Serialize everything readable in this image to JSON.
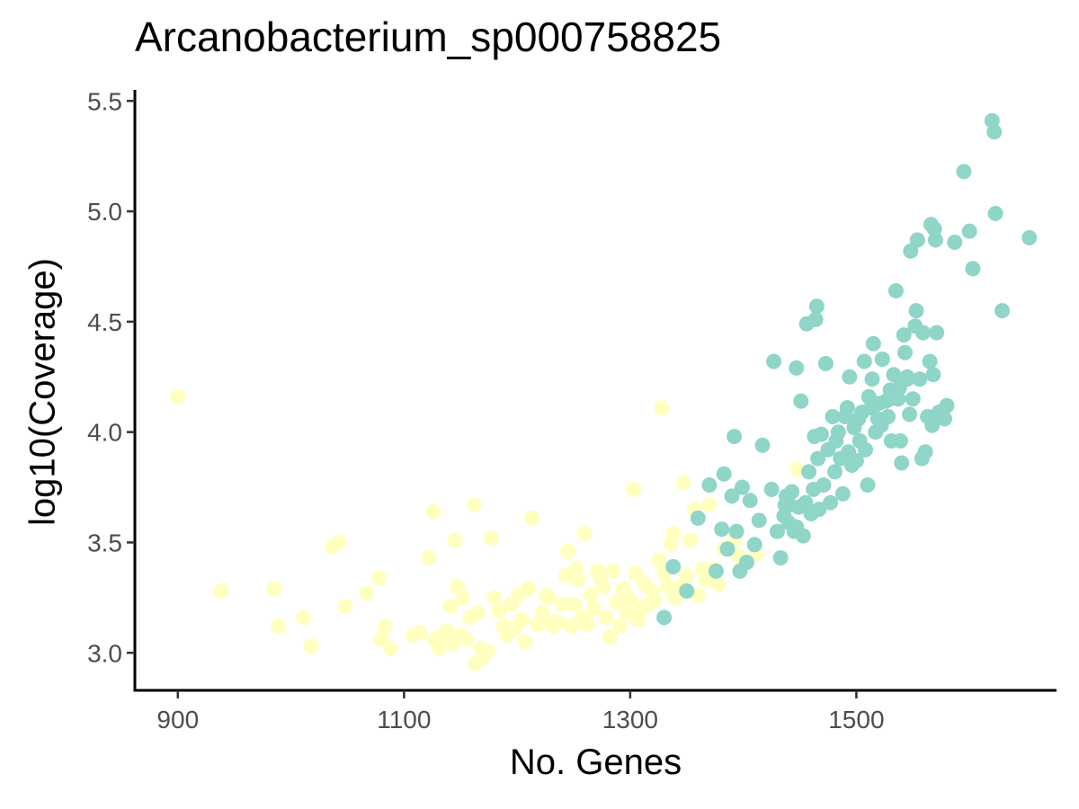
{
  "chart_data": {
    "type": "scatter",
    "title": "Arcanobacterium_sp000758825",
    "xlabel": "No. Genes",
    "ylabel": "log10(Coverage)",
    "xlim": [
      862,
      1677
    ],
    "ylim": [
      2.83,
      5.55
    ],
    "x_ticks": [
      900,
      1100,
      1300,
      1500
    ],
    "y_ticks": [
      3.0,
      3.5,
      4.0,
      4.5,
      5.0,
      5.5
    ],
    "x_tick_labels": [
      "900",
      "1100",
      "1300",
      "1500"
    ],
    "y_tick_labels": [
      "3.0",
      "3.5",
      "4.0",
      "4.5",
      "5.0",
      "5.5"
    ],
    "grid": false,
    "legend": "none",
    "colors": {
      "cluster_a": "#ffffbf",
      "cluster_b": "#8fd5c8"
    },
    "series": [
      {
        "color": "#ffffbf",
        "points": [
          [
            900,
            4.16
          ],
          [
            938,
            3.28
          ],
          [
            985,
            3.29
          ],
          [
            989,
            3.12
          ],
          [
            1011,
            3.16
          ],
          [
            1018,
            3.03
          ],
          [
            1037,
            3.48
          ],
          [
            1042,
            3.5
          ],
          [
            1048,
            3.21
          ],
          [
            1067,
            3.27
          ],
          [
            1078,
            3.34
          ],
          [
            1080,
            3.06
          ],
          [
            1083,
            3.12
          ],
          [
            1088,
            3.02
          ],
          [
            1108,
            3.08
          ],
          [
            1114,
            3.09
          ],
          [
            1122,
            3.43
          ],
          [
            1126,
            3.64
          ],
          [
            1128,
            3.06
          ],
          [
            1131,
            3.02
          ],
          [
            1134,
            3.08
          ],
          [
            1138,
            3.1
          ],
          [
            1141,
            3.21
          ],
          [
            1143,
            3.04
          ],
          [
            1145,
            3.51
          ],
          [
            1147,
            3.3
          ],
          [
            1150,
            3.08
          ],
          [
            1152,
            3.25
          ],
          [
            1155,
            3.06
          ],
          [
            1158,
            3.16
          ],
          [
            1162,
            3.67
          ],
          [
            1163,
            2.95
          ],
          [
            1165,
            3.18
          ],
          [
            1168,
            3.02
          ],
          [
            1170,
            2.98
          ],
          [
            1174,
            3.01
          ],
          [
            1177,
            3.52
          ],
          [
            1180,
            3.25
          ],
          [
            1184,
            3.19
          ],
          [
            1188,
            3.12
          ],
          [
            1191,
            3.08
          ],
          [
            1195,
            3.22
          ],
          [
            1198,
            3.11
          ],
          [
            1201,
            3.26
          ],
          [
            1204,
            3.15
          ],
          [
            1207,
            3.05
          ],
          [
            1210,
            3.29
          ],
          [
            1213,
            3.61
          ],
          [
            1218,
            3.13
          ],
          [
            1222,
            3.18
          ],
          [
            1226,
            3.26
          ],
          [
            1229,
            3.14
          ],
          [
            1232,
            3.12
          ],
          [
            1236,
            3.14
          ],
          [
            1240,
            3.22
          ],
          [
            1243,
            3.35
          ],
          [
            1245,
            3.46
          ],
          [
            1248,
            3.12
          ],
          [
            1250,
            3.22
          ],
          [
            1252,
            3.38
          ],
          [
            1254,
            3.33
          ],
          [
            1257,
            3.16
          ],
          [
            1260,
            3.54
          ],
          [
            1262,
            3.13
          ],
          [
            1265,
            3.26
          ],
          [
            1268,
            3.2
          ],
          [
            1271,
            3.37
          ],
          [
            1273,
            3.34
          ],
          [
            1276,
            3.3
          ],
          [
            1279,
            3.16
          ],
          [
            1282,
            3.07
          ],
          [
            1285,
            3.37
          ],
          [
            1288,
            3.23
          ],
          [
            1291,
            3.12
          ],
          [
            1294,
            3.29
          ],
          [
            1297,
            3.18
          ],
          [
            1300,
            3.24
          ],
          [
            1303,
            3.74
          ],
          [
            1305,
            3.36
          ],
          [
            1307,
            3.15
          ],
          [
            1310,
            3.2
          ],
          [
            1313,
            3.31
          ],
          [
            1316,
            3.22
          ],
          [
            1319,
            3.28
          ],
          [
            1322,
            3.24
          ],
          [
            1325,
            3.42
          ],
          [
            1328,
            4.11
          ],
          [
            1330,
            3.36
          ],
          [
            1333,
            3.3
          ],
          [
            1336,
            3.49
          ],
          [
            1338,
            3.54
          ],
          [
            1341,
            3.27
          ],
          [
            1344,
            3.3
          ],
          [
            1347,
            3.77
          ],
          [
            1350,
            3.35
          ],
          [
            1353,
            3.51
          ],
          [
            1357,
            3.65
          ],
          [
            1360,
            3.26
          ],
          [
            1364,
            3.38
          ],
          [
            1367,
            3.33
          ],
          [
            1370,
            3.67
          ],
          [
            1374,
            3.38
          ],
          [
            1378,
            3.31
          ],
          [
            1383,
            3.47
          ],
          [
            1392,
            3.51
          ],
          [
            1396,
            3.44
          ],
          [
            1412,
            3.45
          ],
          [
            1448,
            3.83
          ],
          [
            1340,
            3.25
          ],
          [
            1228,
            3.25
          ]
        ]
      },
      {
        "color": "#8fd5c8",
        "points": [
          [
            1330,
            3.16
          ],
          [
            1338,
            3.39
          ],
          [
            1350,
            3.28
          ],
          [
            1360,
            3.61
          ],
          [
            1370,
            3.76
          ],
          [
            1376,
            3.37
          ],
          [
            1381,
            3.56
          ],
          [
            1383,
            3.81
          ],
          [
            1386,
            3.47
          ],
          [
            1390,
            3.71
          ],
          [
            1392,
            3.98
          ],
          [
            1394,
            3.55
          ],
          [
            1397,
            3.37
          ],
          [
            1399,
            3.75
          ],
          [
            1403,
            3.41
          ],
          [
            1406,
            3.69
          ],
          [
            1410,
            3.49
          ],
          [
            1414,
            3.6
          ],
          [
            1417,
            3.94
          ],
          [
            1425,
            3.74
          ],
          [
            1427,
            4.32
          ],
          [
            1430,
            3.55
          ],
          [
            1433,
            3.43
          ],
          [
            1436,
            3.62
          ],
          [
            1438,
            3.71
          ],
          [
            1440,
            3.59
          ],
          [
            1443,
            3.73
          ],
          [
            1445,
            3.55
          ],
          [
            1447,
            4.29
          ],
          [
            1449,
            3.66
          ],
          [
            1451,
            4.14
          ],
          [
            1453,
            3.53
          ],
          [
            1455,
            3.68
          ],
          [
            1456,
            4.49
          ],
          [
            1458,
            3.82
          ],
          [
            1460,
            3.63
          ],
          [
            1462,
            3.74
          ],
          [
            1463,
            3.98
          ],
          [
            1464,
            4.51
          ],
          [
            1465,
            4.57
          ],
          [
            1466,
            3.88
          ],
          [
            1467,
            3.65
          ],
          [
            1469,
            3.99
          ],
          [
            1471,
            3.76
          ],
          [
            1473,
            4.31
          ],
          [
            1475,
            3.92
          ],
          [
            1477,
            3.68
          ],
          [
            1479,
            4.07
          ],
          [
            1481,
            3.82
          ],
          [
            1482,
            3.96
          ],
          [
            1484,
            4.0
          ],
          [
            1486,
            3.88
          ],
          [
            1488,
            3.72
          ],
          [
            1490,
            4.07
          ],
          [
            1492,
            4.11
          ],
          [
            1493,
            3.91
          ],
          [
            1494,
            4.25
          ],
          [
            1496,
            3.85
          ],
          [
            1498,
            4.02
          ],
          [
            1500,
            3.87
          ],
          [
            1502,
            4.06
          ],
          [
            1503,
            3.96
          ],
          [
            1505,
            4.09
          ],
          [
            1507,
            4.32
          ],
          [
            1508,
            3.92
          ],
          [
            1510,
            3.76
          ],
          [
            1511,
            4.16
          ],
          [
            1513,
            4.11
          ],
          [
            1514,
            4.24
          ],
          [
            1515,
            4.4
          ],
          [
            1517,
            4.0
          ],
          [
            1519,
            4.06
          ],
          [
            1520,
            4.13
          ],
          [
            1522,
            4.03
          ],
          [
            1523,
            4.33
          ],
          [
            1526,
            4.14
          ],
          [
            1528,
            4.07
          ],
          [
            1530,
            4.19
          ],
          [
            1531,
            3.96
          ],
          [
            1533,
            4.26
          ],
          [
            1535,
            4.64
          ],
          [
            1537,
            4.15
          ],
          [
            1539,
            3.96
          ],
          [
            1540,
            3.86
          ],
          [
            1542,
            4.44
          ],
          [
            1543,
            4.36
          ],
          [
            1545,
            4.24
          ],
          [
            1547,
            4.08
          ],
          [
            1548,
            4.82
          ],
          [
            1550,
            4.15
          ],
          [
            1552,
            4.48
          ],
          [
            1553,
            4.55
          ],
          [
            1554,
            4.87
          ],
          [
            1556,
            4.24
          ],
          [
            1558,
            3.88
          ],
          [
            1559,
            4.45
          ],
          [
            1561,
            3.91
          ],
          [
            1563,
            4.07
          ],
          [
            1565,
            4.32
          ],
          [
            1566,
            4.94
          ],
          [
            1567,
            4.03
          ],
          [
            1568,
            4.26
          ],
          [
            1569,
            4.92
          ],
          [
            1570,
            4.87
          ],
          [
            1571,
            4.45
          ],
          [
            1573,
            4.09
          ],
          [
            1575,
            4.07
          ],
          [
            1578,
            4.06
          ],
          [
            1580,
            4.12
          ],
          [
            1587,
            4.86
          ],
          [
            1595,
            5.18
          ],
          [
            1600,
            4.91
          ],
          [
            1603,
            4.74
          ],
          [
            1620,
            5.41
          ],
          [
            1622,
            5.36
          ],
          [
            1623,
            4.99
          ],
          [
            1629,
            4.55
          ],
          [
            1653,
            4.88
          ],
          [
            1530,
            4.15
          ],
          [
            1538,
            4.2
          ],
          [
            1545,
            4.25
          ],
          [
            1441,
            3.67
          ],
          [
            1447,
            3.57
          ],
          [
            1437,
            3.67
          ]
        ]
      }
    ]
  }
}
